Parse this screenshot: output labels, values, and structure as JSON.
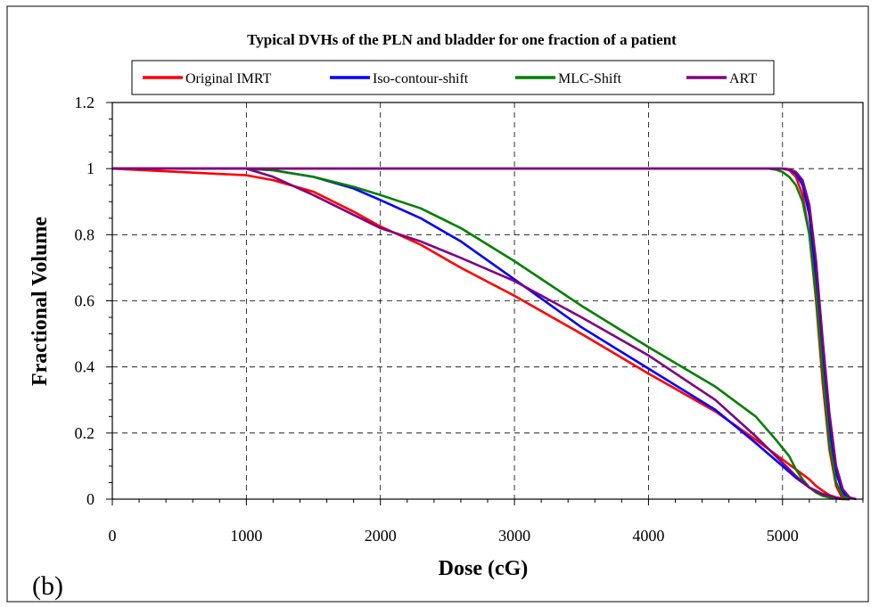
{
  "chart_data": {
    "type": "line",
    "title": "Typical DVHs of the PLN and bladder for one fraction of a patient",
    "xlabel": "Dose (cG)",
    "ylabel": "Fractional Volume",
    "panel_label": "(b)",
    "xlim": [
      0,
      5600
    ],
    "ylim": [
      0,
      1.2
    ],
    "x_ticks": [
      0,
      1000,
      2000,
      3000,
      4000,
      5000
    ],
    "y_ticks": [
      0,
      0.2,
      0.4,
      0.6,
      0.8,
      1,
      1.2
    ],
    "x_tick_labels": [
      "0",
      "1000",
      "2000",
      "3000",
      "4000",
      "5000"
    ],
    "y_tick_labels": [
      "0",
      "0.2",
      "0.4",
      "0.6",
      "0.8",
      "1",
      "1.2"
    ],
    "grid": true,
    "legend_position": "top",
    "series": [
      {
        "name": "Original IMRT",
        "color": "#ff0000",
        "x": [
          0,
          500,
          1000,
          1200,
          1500,
          1800,
          2000,
          2300,
          2600,
          3000,
          3500,
          4000,
          4500,
          4800,
          5000,
          5100,
          5200,
          5250,
          5300,
          5350,
          5400,
          5450,
          5500
        ],
        "y": [
          1.0,
          0.99,
          0.98,
          0.965,
          0.93,
          0.87,
          0.825,
          0.77,
          0.7,
          0.615,
          0.5,
          0.38,
          0.265,
          0.18,
          0.12,
          0.09,
          0.06,
          0.04,
          0.025,
          0.012,
          0.005,
          0.001,
          0.0
        ]
      },
      {
        "name": "Iso-contour-shift",
        "color": "#0000ff",
        "x": [
          0,
          500,
          1000,
          1200,
          1500,
          1800,
          2000,
          2300,
          2600,
          3000,
          3500,
          4000,
          4500,
          4800,
          5000,
          5100,
          5200,
          5300,
          5400,
          5450,
          5500
        ],
        "y": [
          1.0,
          1.0,
          1.0,
          0.995,
          0.975,
          0.94,
          0.905,
          0.85,
          0.78,
          0.665,
          0.52,
          0.395,
          0.27,
          0.17,
          0.1,
          0.065,
          0.035,
          0.015,
          0.005,
          0.001,
          0.0
        ]
      },
      {
        "name": "MLC-Shift",
        "color": "#008000",
        "x": [
          0,
          500,
          1000,
          1200,
          1500,
          1800,
          2000,
          2300,
          2600,
          3000,
          3500,
          4000,
          4500,
          4800,
          4950,
          5050,
          5100,
          5150,
          5200,
          5250,
          5300,
          5350,
          5400,
          5450,
          5500
        ],
        "y": [
          1.0,
          1.0,
          1.0,
          0.995,
          0.975,
          0.945,
          0.92,
          0.88,
          0.82,
          0.72,
          0.585,
          0.46,
          0.34,
          0.25,
          0.18,
          0.13,
          0.09,
          0.06,
          0.035,
          0.02,
          0.01,
          0.005,
          0.002,
          0.0,
          0.0
        ]
      },
      {
        "name": "ART",
        "color": "#800080",
        "x": [
          0,
          500,
          1000,
          1200,
          1500,
          1800,
          2000,
          2300,
          2600,
          3000,
          3500,
          4000,
          4500,
          4800,
          5000,
          5100,
          5200,
          5300,
          5400,
          5450,
          5500
        ],
        "y": [
          1.0,
          1.0,
          1.0,
          0.975,
          0.92,
          0.86,
          0.82,
          0.78,
          0.73,
          0.66,
          0.55,
          0.435,
          0.3,
          0.19,
          0.11,
          0.07,
          0.035,
          0.015,
          0.005,
          0.001,
          0.0
        ]
      },
      {
        "name": "",
        "color": "#ff0000",
        "legend": false,
        "x": [
          0,
          1000,
          2000,
          3000,
          4000,
          4900,
          5000,
          5050,
          5100,
          5150,
          5200,
          5250,
          5300,
          5350,
          5400,
          5450
        ],
        "y": [
          1.0,
          1.0,
          1.0,
          1.0,
          1.0,
          1.0,
          1.0,
          0.995,
          0.975,
          0.92,
          0.8,
          0.6,
          0.35,
          0.15,
          0.04,
          0.0
        ]
      },
      {
        "name": "",
        "color": "#0000ff",
        "legend": false,
        "x": [
          0,
          1000,
          2000,
          3000,
          4000,
          4900,
          5000,
          5050,
          5100,
          5150,
          5200,
          5250,
          5300,
          5350,
          5400,
          5450,
          5500
        ],
        "y": [
          1.0,
          1.0,
          1.0,
          1.0,
          1.0,
          1.0,
          1.0,
          0.998,
          0.985,
          0.95,
          0.86,
          0.67,
          0.43,
          0.22,
          0.08,
          0.02,
          0.0
        ]
      },
      {
        "name": "",
        "color": "#008000",
        "legend": false,
        "x": [
          0,
          1000,
          2000,
          3000,
          4000,
          4900,
          4950,
          5000,
          5050,
          5100,
          5150,
          5200,
          5250,
          5300,
          5350,
          5400,
          5450,
          5500
        ],
        "y": [
          1.0,
          1.0,
          1.0,
          1.0,
          1.0,
          1.0,
          0.997,
          0.99,
          0.975,
          0.95,
          0.9,
          0.8,
          0.62,
          0.38,
          0.17,
          0.05,
          0.01,
          0.0
        ]
      },
      {
        "name": "",
        "color": "#800080",
        "legend": false,
        "x": [
          0,
          1000,
          2000,
          3000,
          4000,
          4900,
          5000,
          5050,
          5100,
          5150,
          5200,
          5250,
          5300,
          5350,
          5400,
          5450,
          5500,
          5550
        ],
        "y": [
          1.0,
          1.0,
          1.0,
          1.0,
          1.0,
          1.0,
          1.0,
          0.998,
          0.99,
          0.965,
          0.89,
          0.72,
          0.48,
          0.26,
          0.1,
          0.03,
          0.005,
          0.0
        ]
      }
    ]
  }
}
